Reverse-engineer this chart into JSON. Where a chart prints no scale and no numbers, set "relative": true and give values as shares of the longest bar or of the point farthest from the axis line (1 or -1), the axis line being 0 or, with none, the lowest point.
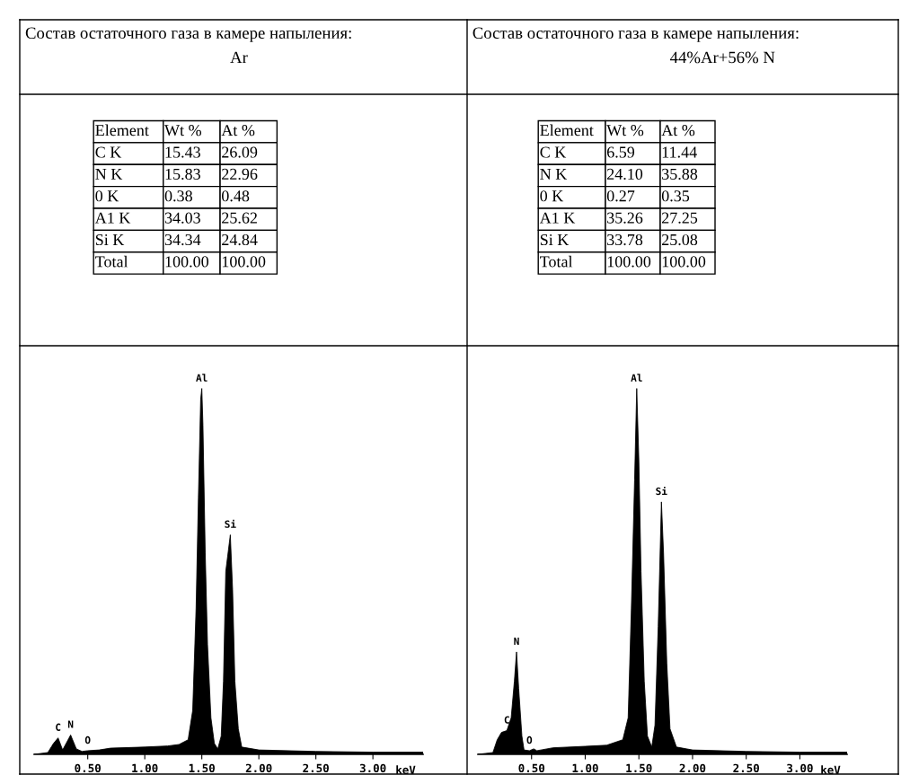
{
  "chart_data": [
    {
      "type": "other",
      "title": "Состав остаточного газа в камере напыления:",
      "subtitle": "Ar",
      "annotations": [
        "Element",
        "Wt %",
        "At %",
        "C K",
        "15.43",
        "26.09",
        "N K",
        "15.83",
        "22.96",
        "0 K",
        "0.38",
        "0.48",
        "A1 K",
        "34.03",
        "25.62",
        "Si K",
        "34.34",
        "24.84",
        "Total",
        "100.00",
        "100.00"
      ]
    },
    {
      "type": "other",
      "title": "Состав остаточного газа в камере напыления:",
      "subtitle": "44%Ar+56% N",
      "annotations": [
        "Element",
        "Wt %",
        "At %",
        "C K",
        "6.59",
        "11.44",
        "N K",
        "24.10",
        "35.88",
        "0 K",
        "0.27",
        "0.35",
        "A1 K",
        "35.26",
        "27.25",
        "Si K",
        "33.78",
        "25.08",
        "Total",
        "100.00",
        "100.00"
      ]
    },
    {
      "type": "area",
      "relative": true,
      "xlabel": "keV",
      "xlim": [
        0.03,
        3.44
      ],
      "tick_labels": "x",
      "xticks": [
        {
          "value": 0.5,
          "label": "0.50"
        },
        {
          "value": 1.0,
          "label": "1.00"
        },
        {
          "value": 1.5,
          "label": "1.50"
        },
        {
          "value": 2.0,
          "label": "2.00"
        },
        {
          "value": 2.5,
          "label": "2.50"
        },
        {
          "value": 3.0,
          "label": "3.00"
        }
      ],
      "x": [
        0.03,
        0.15,
        0.2,
        0.24,
        0.28,
        0.35,
        0.4,
        0.45,
        0.5,
        0.6,
        0.7,
        1.0,
        1.2,
        1.3,
        1.38,
        1.42,
        1.45,
        1.47,
        1.49,
        1.5,
        1.51,
        1.53,
        1.55,
        1.58,
        1.61,
        1.64,
        1.67,
        1.69,
        1.71,
        1.75,
        1.77,
        1.79,
        1.82,
        1.85,
        2.0,
        2.5,
        3.0,
        3.44
      ],
      "series": [
        {
          "color": "#000000",
          "values": [
            0,
            0.005,
            0.03,
            0.045,
            0.012,
            0.053,
            0.015,
            0.008,
            0.01,
            0.012,
            0.017,
            0.02,
            0.023,
            0.027,
            0.04,
            0.12,
            0.4,
            0.7,
            0.97,
            1.0,
            0.9,
            0.55,
            0.3,
            0.1,
            0.03,
            0.015,
            0.05,
            0.2,
            0.5,
            0.6,
            0.45,
            0.2,
            0.07,
            0.02,
            0.012,
            0.008,
            0.006,
            0.006
          ]
        }
      ],
      "annotations": [
        {
          "text": "C",
          "x": 0.24,
          "y": 0.045
        },
        {
          "text": "N",
          "x": 0.35,
          "y": 0.053
        },
        {
          "text": "O",
          "x": 0.5,
          "y": 0.01
        },
        {
          "text": "Al",
          "x": 1.5,
          "y": 1.0
        },
        {
          "text": "Si",
          "x": 1.75,
          "y": 0.6
        }
      ]
    },
    {
      "type": "area",
      "relative": true,
      "xlabel": "keV",
      "xlim": [
        0.0,
        3.44
      ],
      "tick_labels": "x",
      "xticks": [
        {
          "value": 0.5,
          "label": "0.50"
        },
        {
          "value": 1.0,
          "label": "1.00"
        },
        {
          "value": 1.5,
          "label": "1.50"
        },
        {
          "value": 2.0,
          "label": "2.00"
        },
        {
          "value": 2.5,
          "label": "2.50"
        },
        {
          "value": 3.0,
          "label": "3.00"
        }
      ],
      "x": [
        0.0,
        0.14,
        0.18,
        0.22,
        0.27,
        0.31,
        0.34,
        0.36,
        0.38,
        0.41,
        0.43,
        0.48,
        0.52,
        0.55,
        0.7,
        1.0,
        1.2,
        1.35,
        1.4,
        1.43,
        1.46,
        1.48,
        1.5,
        1.52,
        1.55,
        1.58,
        1.62,
        1.65,
        1.68,
        1.71,
        1.73,
        1.76,
        1.79,
        1.85,
        2.0,
        2.5,
        3.0,
        3.44
      ],
      "series": [
        {
          "color": "#000000",
          "values": [
            0,
            0.005,
            0.04,
            0.06,
            0.065,
            0.1,
            0.2,
            0.28,
            0.18,
            0.05,
            0.012,
            0.01,
            0.015,
            0.01,
            0.018,
            0.022,
            0.025,
            0.04,
            0.1,
            0.4,
            0.75,
            1.0,
            0.8,
            0.5,
            0.2,
            0.05,
            0.02,
            0.08,
            0.35,
            0.69,
            0.55,
            0.25,
            0.07,
            0.02,
            0.012,
            0.008,
            0.006,
            0.006
          ]
        }
      ],
      "annotations": [
        {
          "text": "C",
          "x": 0.27,
          "y": 0.065
        },
        {
          "text": "N",
          "x": 0.36,
          "y": 0.28
        },
        {
          "text": "O",
          "x": 0.48,
          "y": 0.01
        },
        {
          "text": "Al",
          "x": 1.48,
          "y": 1.0
        },
        {
          "text": "Si",
          "x": 1.71,
          "y": 0.69
        }
      ]
    }
  ]
}
